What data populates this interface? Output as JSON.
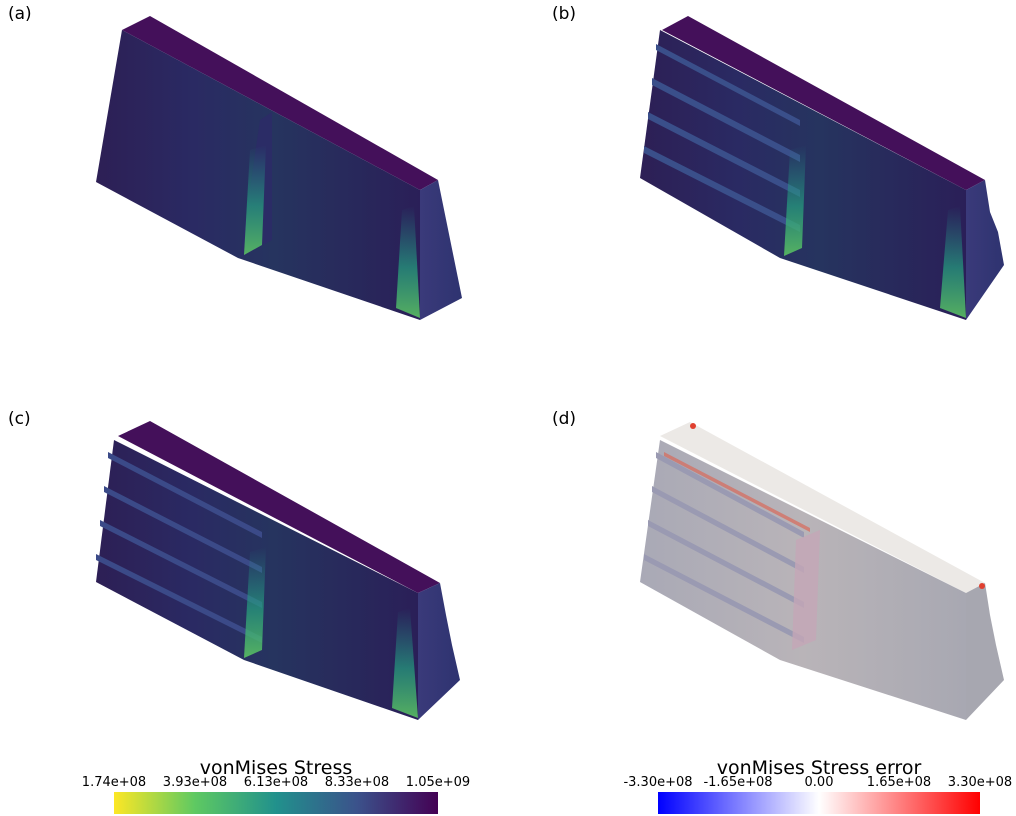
{
  "panels": {
    "a": {
      "label": "(a)"
    },
    "b": {
      "label": "(b)"
    },
    "c": {
      "label": "(c)"
    },
    "d": {
      "label": "(d)"
    }
  },
  "colorbars": {
    "stress": {
      "title": "vonMises Stress",
      "ticks": [
        "1.74e+08",
        "3.93e+08",
        "6.13e+08",
        "8.33e+08",
        "1.05e+09"
      ],
      "colors": [
        "#fde725",
        "#5ec962",
        "#21918c",
        "#3b528b",
        "#440154"
      ]
    },
    "error": {
      "title": "vonMises Stress error",
      "ticks": [
        "-3.30e+08",
        "-1.65e+08",
        "0.00",
        "1.65e+08",
        "3.30e+08"
      ],
      "colors": [
        "#0000ff",
        "#ffffff",
        "#ff0000"
      ]
    }
  }
}
